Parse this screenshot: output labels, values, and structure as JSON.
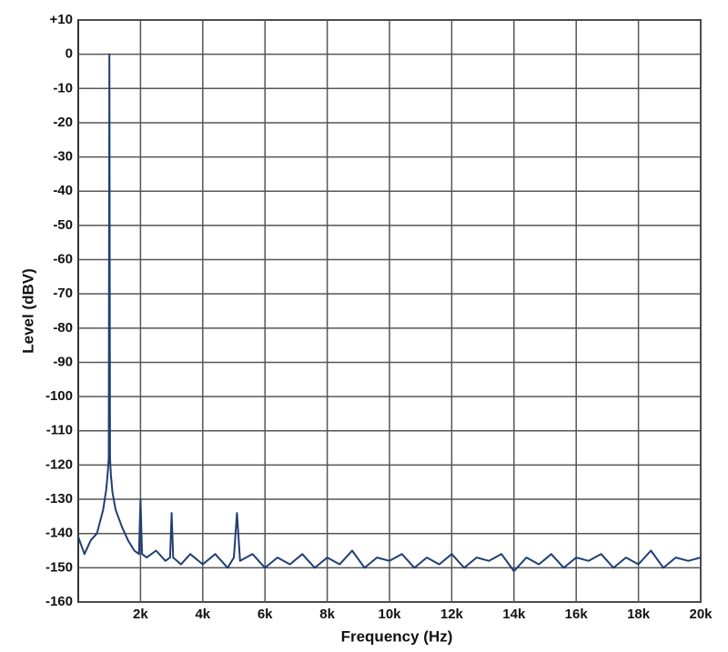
{
  "chart_data": {
    "type": "line",
    "x_label": "Frequency (Hz)",
    "y_label": "Level (dBV)",
    "xlim": [
      0,
      20000
    ],
    "ylim": [
      -160,
      10
    ],
    "xticks": [
      {
        "value": 2000,
        "label": "2k"
      },
      {
        "value": 4000,
        "label": "4k"
      },
      {
        "value": 6000,
        "label": "6k"
      },
      {
        "value": 8000,
        "label": "8k"
      },
      {
        "value": 10000,
        "label": "10k"
      },
      {
        "value": 12000,
        "label": "12k"
      },
      {
        "value": 14000,
        "label": "14k"
      },
      {
        "value": 16000,
        "label": "16k"
      },
      {
        "value": 18000,
        "label": "18k"
      },
      {
        "value": 20000,
        "label": "20k"
      }
    ],
    "yticks": [
      {
        "value": 10,
        "label": "+10"
      },
      0,
      -10,
      -20,
      -30,
      -40,
      -50,
      -60,
      -70,
      -80,
      -90,
      -100,
      -110,
      -120,
      -130,
      -140,
      -150,
      -160
    ],
    "grid": true,
    "series": [
      {
        "color": "#1f3f73",
        "x": [
          0,
          200,
          400,
          600,
          800,
          900,
          950,
          980,
          1000,
          1020,
          1050,
          1100,
          1200,
          1400,
          1600,
          1800,
          1950,
          2000,
          2050,
          2200,
          2500,
          2800,
          2950,
          3000,
          3050,
          3300,
          3600,
          4000,
          4400,
          4800,
          5000,
          5100,
          5200,
          5600,
          6000,
          6400,
          6800,
          7200,
          7600,
          8000,
          8400,
          8800,
          9200,
          9600,
          10000,
          10400,
          10800,
          11200,
          11600,
          12000,
          12400,
          12800,
          13200,
          13600,
          14000,
          14400,
          14800,
          15200,
          15600,
          16000,
          16400,
          16800,
          17200,
          17600,
          18000,
          18400,
          18800,
          19200,
          19600,
          20000
        ],
        "values": [
          -141,
          -146,
          -142,
          -140,
          -133,
          -127,
          -122,
          -118,
          0,
          -118,
          -123,
          -128,
          -133,
          -138,
          -142,
          -145,
          -146,
          -130,
          -146,
          -147,
          -145,
          -148,
          -147,
          -134,
          -147,
          -149,
          -146,
          -149,
          -146,
          -150,
          -147,
          -134,
          -148,
          -146,
          -150,
          -147,
          -149,
          -146,
          -150,
          -147,
          -149,
          -145,
          -150,
          -147,
          -148,
          -146,
          -150,
          -147,
          -149,
          -146,
          -150,
          -147,
          -148,
          -146,
          -151,
          -147,
          -149,
          -146,
          -150,
          -147,
          -148,
          -146,
          -150,
          -147,
          -149,
          -145,
          -150,
          -147,
          -148,
          -147
        ]
      }
    ]
  }
}
